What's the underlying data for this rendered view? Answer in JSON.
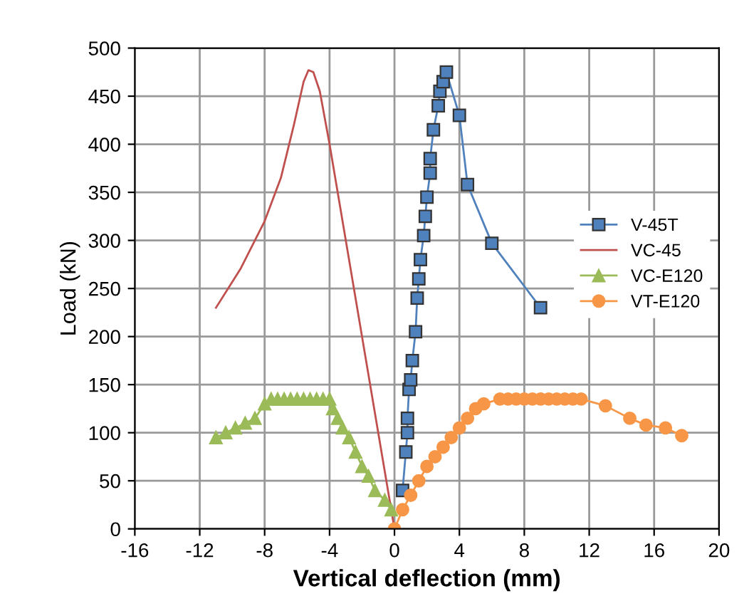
{
  "chart_data": {
    "type": "line",
    "xlabel": "Vertical deflection (mm)",
    "ylabel": "Load (kN)",
    "xlim": [
      -16,
      20
    ],
    "ylim": [
      0,
      500
    ],
    "xticks": [
      -16,
      -12,
      -8,
      -4,
      0,
      4,
      8,
      12,
      16,
      20
    ],
    "yticks": [
      0,
      50,
      100,
      150,
      200,
      250,
      300,
      350,
      400,
      450,
      500
    ],
    "grid": true,
    "legend": "right",
    "series": [
      {
        "name": "V-45T",
        "color": "#4f81bd",
        "marker": "square",
        "x": [
          0.5,
          0.7,
          0.8,
          0.8,
          0.9,
          1.0,
          1.1,
          1.3,
          1.4,
          1.5,
          1.6,
          1.8,
          1.9,
          2.0,
          2.2,
          2.2,
          2.4,
          2.7,
          2.8,
          3.0,
          3.2,
          4.0,
          4.5,
          6.0,
          9.0
        ],
        "values": [
          40,
          80,
          100,
          115,
          145,
          155,
          175,
          205,
          240,
          260,
          280,
          305,
          325,
          345,
          370,
          385,
          415,
          440,
          455,
          465,
          475,
          430,
          358,
          297,
          230
        ]
      },
      {
        "name": "VC-45",
        "color": "#c0504d",
        "marker": "none",
        "x": [
          -11,
          -9.5,
          -8,
          -7,
          -6.2,
          -5.6,
          -5.3,
          -5,
          -4.6,
          -4,
          -3,
          -2,
          -1,
          0
        ],
        "values": [
          230,
          270,
          320,
          365,
          420,
          465,
          477,
          475,
          455,
          400,
          300,
          200,
          100,
          0
        ]
      },
      {
        "name": "VC-E120",
        "color": "#9bbb59",
        "marker": "triangle",
        "x": [
          -11,
          -10.4,
          -9.8,
          -9.2,
          -8.6,
          -8,
          -7.6,
          -7.2,
          -6.8,
          -6.4,
          -6,
          -5.6,
          -5.2,
          -4.8,
          -4.4,
          -4,
          -3.8,
          -3.5,
          -3.2,
          -2.8,
          -2.4,
          -2,
          -1.6,
          -1.2,
          -0.6,
          -0.2
        ],
        "values": [
          95,
          100,
          105,
          110,
          115,
          130,
          135,
          135,
          135,
          135,
          135,
          135,
          135,
          135,
          135,
          135,
          125,
          115,
          105,
          95,
          80,
          65,
          55,
          40,
          30,
          20
        ]
      },
      {
        "name": "VT-E120",
        "color": "#f79646",
        "marker": "circle",
        "x": [
          0,
          0.5,
          1,
          1.5,
          2,
          2.5,
          3,
          3.5,
          4,
          4.5,
          5,
          5.5,
          6.5,
          7,
          7.5,
          8,
          8.5,
          9,
          9.5,
          10,
          10.5,
          11,
          11.5,
          13,
          14.5,
          15.5,
          16.7,
          17.7
        ],
        "values": [
          0,
          20,
          35,
          50,
          65,
          75,
          85,
          95,
          105,
          115,
          125,
          130,
          135,
          135,
          135,
          135,
          135,
          135,
          135,
          135,
          135,
          135,
          135,
          128,
          115,
          108,
          105,
          97
        ]
      }
    ]
  }
}
